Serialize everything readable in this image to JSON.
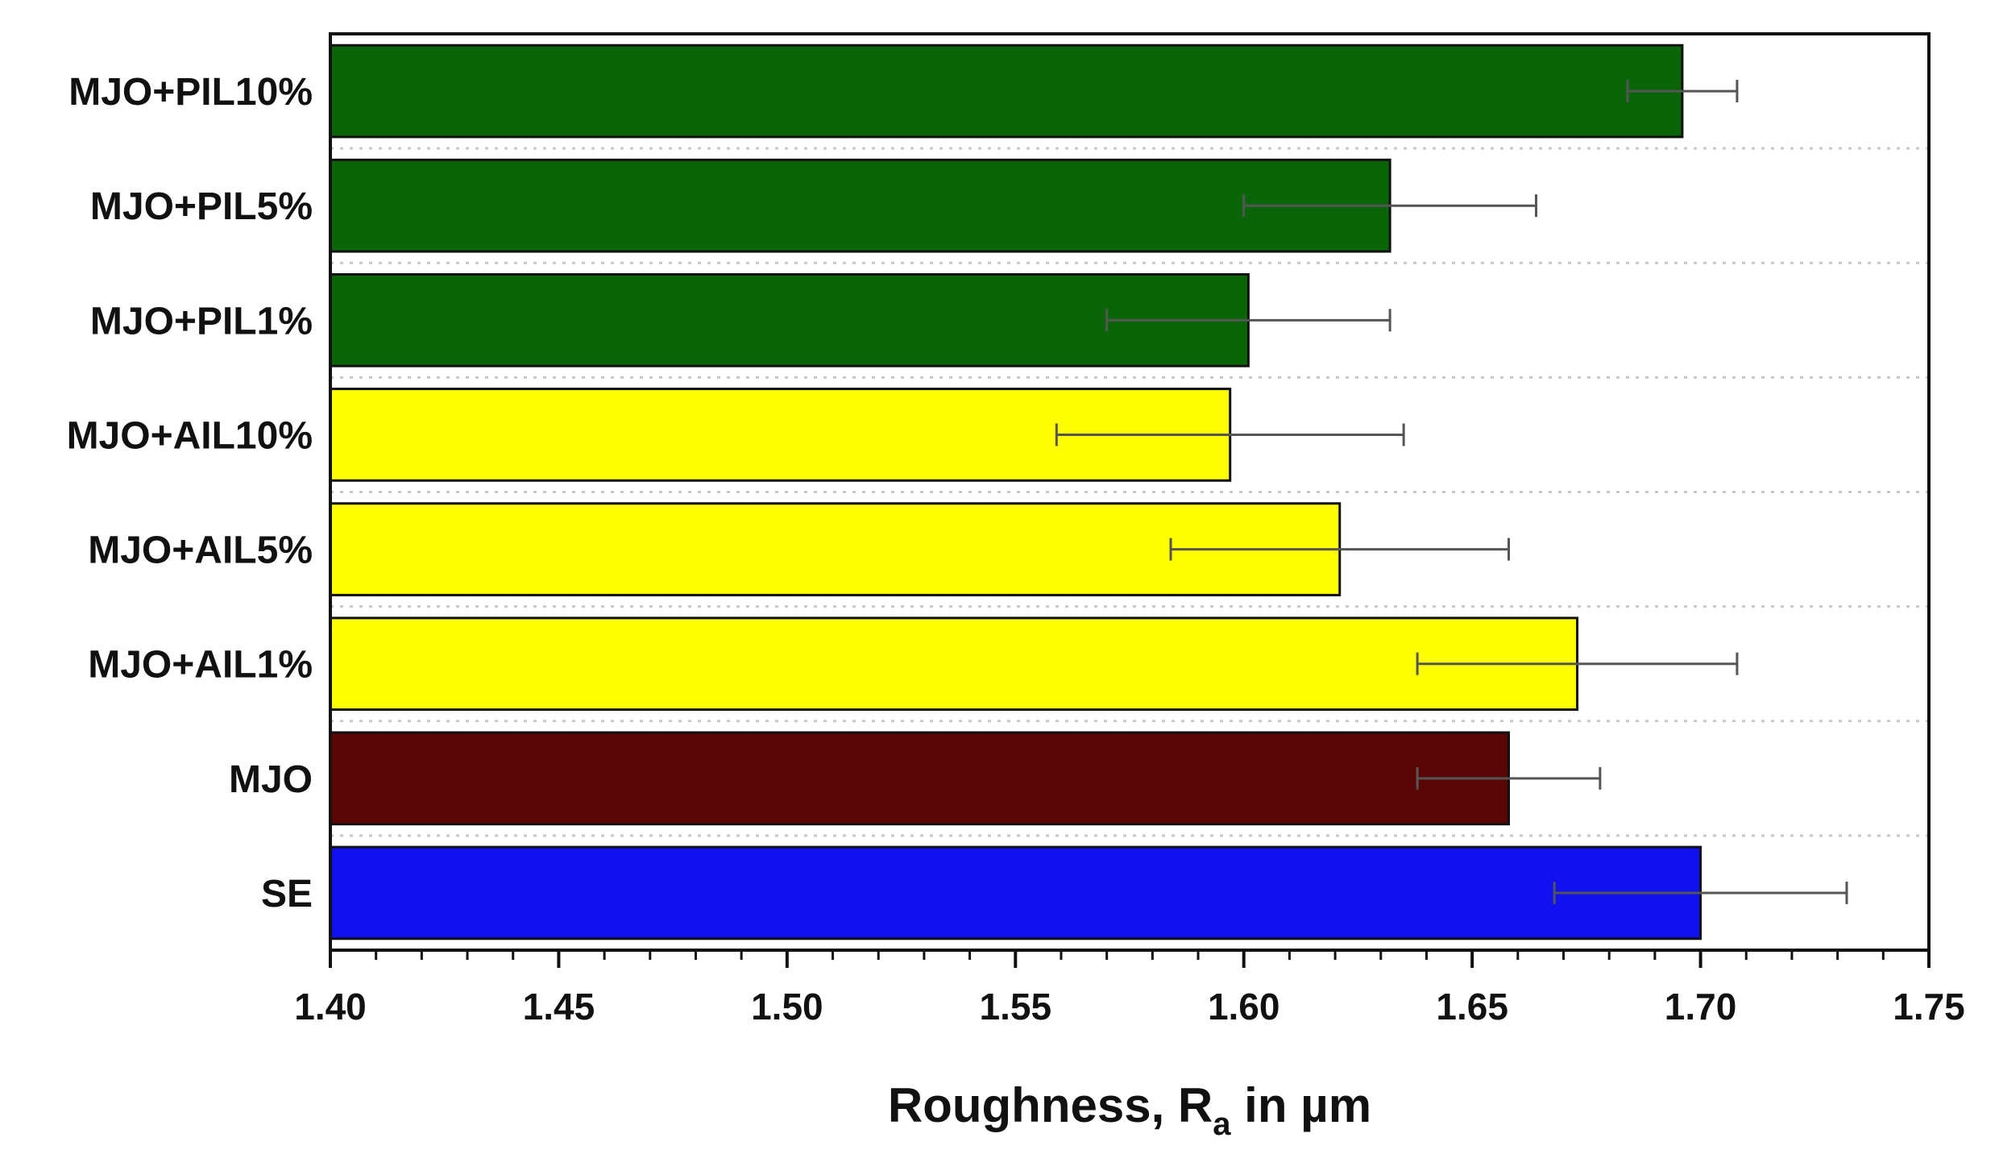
{
  "chart_data": {
    "type": "bar",
    "orientation": "horizontal",
    "categories": [
      "SE",
      "MJO",
      "MJO+AIL1%",
      "MJO+AIL5%",
      "MJO+AIL10%",
      "MJO+PIL1%",
      "MJO+PIL5%",
      "MJO+PIL10%"
    ],
    "values": [
      1.7,
      1.658,
      1.673,
      1.621,
      1.597,
      1.601,
      1.632,
      1.696
    ],
    "errors": [
      0.032,
      0.02,
      0.035,
      0.037,
      0.038,
      0.031,
      0.032,
      0.012
    ],
    "bar_colors": [
      "#1010f0",
      "#5a0606",
      "#ffff00",
      "#ffff00",
      "#ffff00",
      "#0a6408",
      "#0a6408",
      "#0a6408"
    ],
    "xlim": [
      1.4,
      1.75
    ],
    "xticks": [
      "1.40",
      "1.45",
      "1.50",
      "1.55",
      "1.60",
      "1.65",
      "1.70",
      "1.75"
    ],
    "xlabel_main": "Roughness, R",
    "xlabel_sub": "a",
    "xlabel_tail": " in µm",
    "title": "",
    "ylabel": "",
    "grid": "dotted horizontal separators"
  }
}
